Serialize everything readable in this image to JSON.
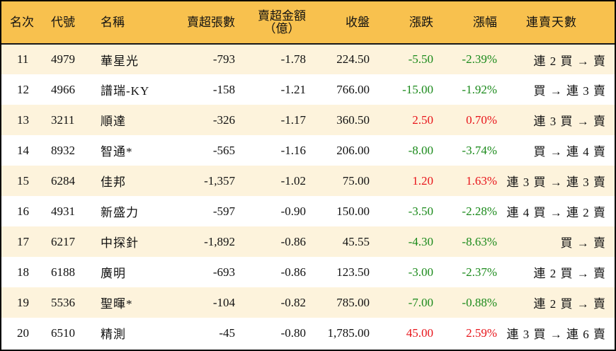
{
  "table": {
    "headers": {
      "rank": "名次",
      "code": "代號",
      "name": "名稱",
      "net_sell_lots": "賣超張數",
      "net_sell_amount_line1": "賣超金額",
      "net_sell_amount_line2": "（億）",
      "close": "收盤",
      "change": "漲跌",
      "change_pct": "漲幅",
      "streak": "連賣天數"
    },
    "rows": [
      {
        "rank": "11",
        "code": "4979",
        "name": "華星光",
        "lots": "-793",
        "amount": "-1.78",
        "close": "224.50",
        "change": "-5.50",
        "pct": "-2.39%",
        "direction": "down",
        "streak": "連 2 買 → 賣"
      },
      {
        "rank": "12",
        "code": "4966",
        "name": "譜瑞-KY",
        "lots": "-158",
        "amount": "-1.21",
        "close": "766.00",
        "change": "-15.00",
        "pct": "-1.92%",
        "direction": "down",
        "streak": "買 → 連 3 賣"
      },
      {
        "rank": "13",
        "code": "3211",
        "name": "順達",
        "lots": "-326",
        "amount": "-1.17",
        "close": "360.50",
        "change": "2.50",
        "pct": "0.70%",
        "direction": "up",
        "streak": "連 3 買 → 賣"
      },
      {
        "rank": "14",
        "code": "8932",
        "name": "智通*",
        "lots": "-565",
        "amount": "-1.16",
        "close": "206.00",
        "change": "-8.00",
        "pct": "-3.74%",
        "direction": "down",
        "streak": "買 → 連 4 賣"
      },
      {
        "rank": "15",
        "code": "6284",
        "name": "佳邦",
        "lots": "-1,357",
        "amount": "-1.02",
        "close": "75.00",
        "change": "1.20",
        "pct": "1.63%",
        "direction": "up",
        "streak": "連 3 買 → 連 3 賣"
      },
      {
        "rank": "16",
        "code": "4931",
        "name": "新盛力",
        "lots": "-597",
        "amount": "-0.90",
        "close": "150.00",
        "change": "-3.50",
        "pct": "-2.28%",
        "direction": "down",
        "streak": "連 4 買 → 連 2 賣"
      },
      {
        "rank": "17",
        "code": "6217",
        "name": "中探針",
        "lots": "-1,892",
        "amount": "-0.86",
        "close": "45.55",
        "change": "-4.30",
        "pct": "-8.63%",
        "direction": "down",
        "streak": "買 → 賣"
      },
      {
        "rank": "18",
        "code": "6188",
        "name": "廣明",
        "lots": "-693",
        "amount": "-0.86",
        "close": "123.50",
        "change": "-3.00",
        "pct": "-2.37%",
        "direction": "down",
        "streak": "連 2 買 → 賣"
      },
      {
        "rank": "19",
        "code": "5536",
        "name": "聖暉*",
        "lots": "-104",
        "amount": "-0.82",
        "close": "785.00",
        "change": "-7.00",
        "pct": "-0.88%",
        "direction": "down",
        "streak": "連 2 買 → 賣"
      },
      {
        "rank": "20",
        "code": "6510",
        "name": "精測",
        "lots": "-45",
        "amount": "-0.80",
        "close": "1,785.00",
        "change": "45.00",
        "pct": "2.59%",
        "direction": "up",
        "streak": "連 3 買 → 連 6 賣"
      }
    ]
  },
  "colors": {
    "header_bg": "#F8C14E",
    "row_odd_bg": "#FDF3DC",
    "row_even_bg": "#FFFFFF",
    "up": "#E8141A",
    "down": "#1B8A1B",
    "border": "#000000"
  }
}
